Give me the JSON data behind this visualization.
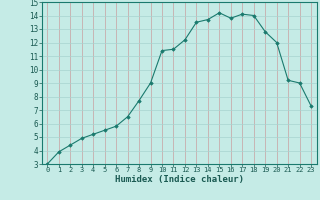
{
  "x": [
    0,
    1,
    2,
    3,
    4,
    5,
    6,
    7,
    8,
    9,
    10,
    11,
    12,
    13,
    14,
    15,
    16,
    17,
    18,
    19,
    20,
    21,
    22,
    23
  ],
  "y": [
    3.0,
    3.9,
    4.4,
    4.9,
    5.2,
    5.5,
    5.8,
    6.5,
    7.7,
    9.0,
    11.4,
    11.5,
    12.2,
    13.5,
    13.7,
    14.2,
    13.8,
    14.1,
    14.0,
    12.8,
    12.0,
    9.2,
    9.0,
    7.3
  ],
  "xlabel": "Humidex (Indice chaleur)",
  "ylim": [
    3,
    15
  ],
  "xlim": [
    -0.5,
    23.5
  ],
  "yticks": [
    3,
    4,
    5,
    6,
    7,
    8,
    9,
    10,
    11,
    12,
    13,
    14,
    15
  ],
  "xticks": [
    0,
    1,
    2,
    3,
    4,
    5,
    6,
    7,
    8,
    9,
    10,
    11,
    12,
    13,
    14,
    15,
    16,
    17,
    18,
    19,
    20,
    21,
    22,
    23
  ],
  "line_color": "#1a7a6e",
  "marker_color": "#1a7a6e",
  "bg_color": "#c5ebe6",
  "grid_color_v": "#c8a0a0",
  "grid_color_h": "#a8d4d0"
}
